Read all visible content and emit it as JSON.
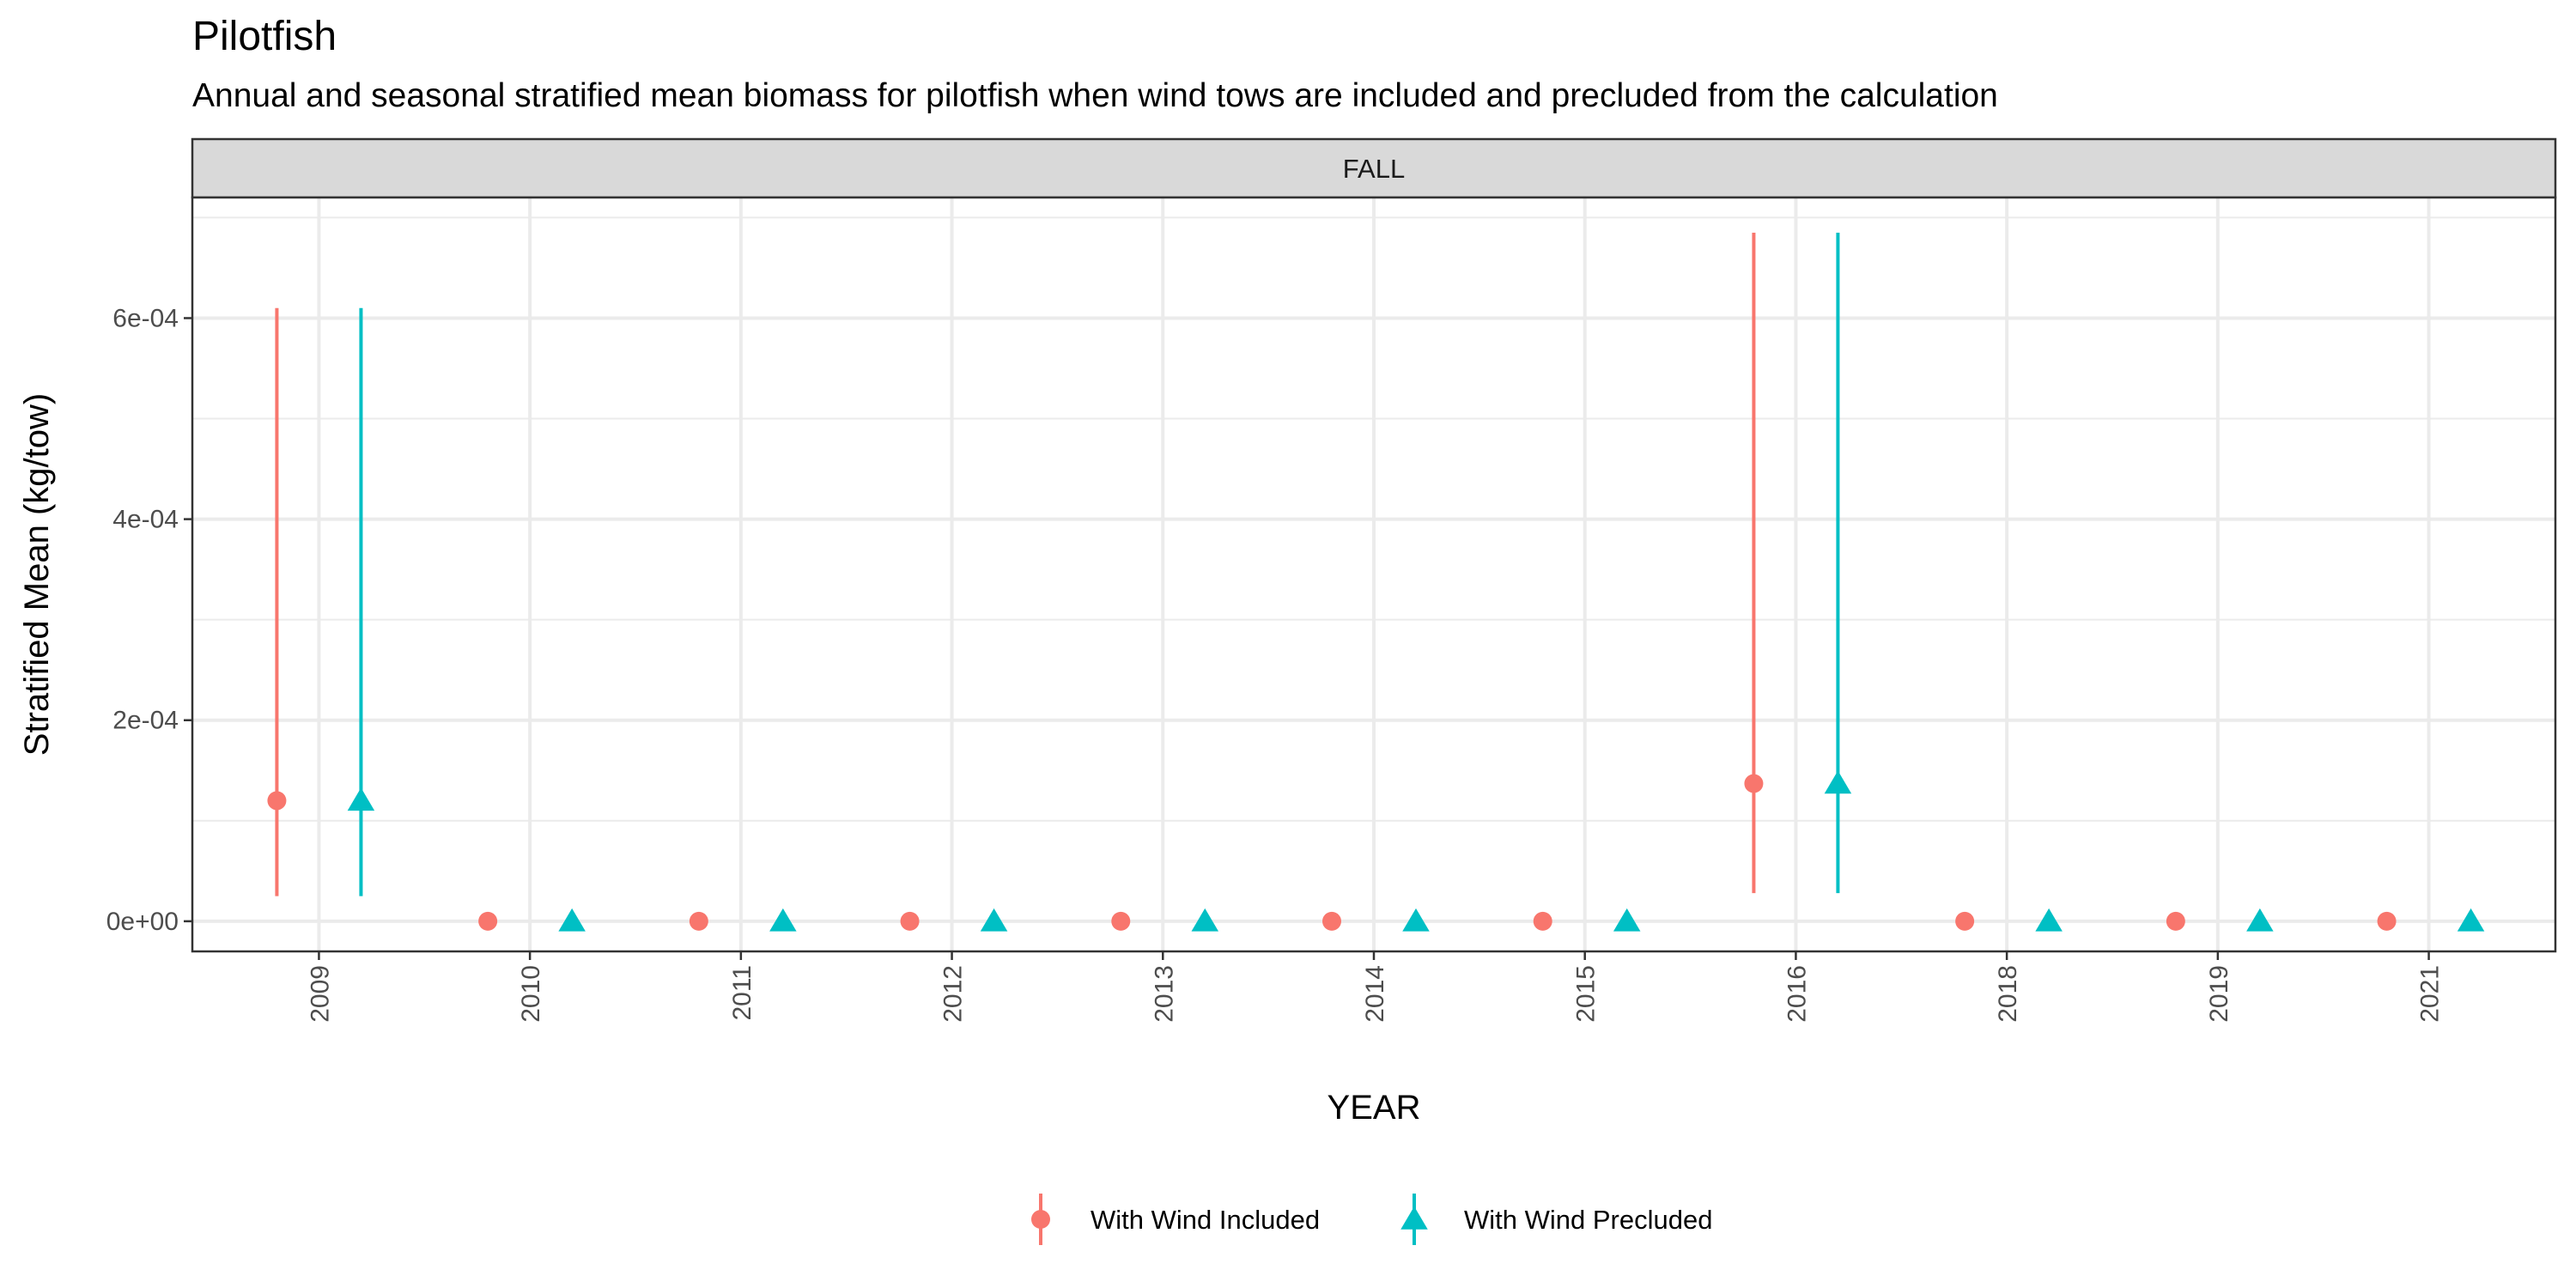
{
  "title": "Pilotfish",
  "subtitle": "Annual and seasonal stratified mean biomass for pilotfish when wind tows are included and precluded from the calculation",
  "chart_data": {
    "type": "scatter",
    "facet": "FALL",
    "xlabel": "YEAR",
    "ylabel": "Stratified Mean (kg/tow)",
    "categories": [
      "2009",
      "2010",
      "2011",
      "2012",
      "2013",
      "2014",
      "2015",
      "2016",
      "2018",
      "2019",
      "2021"
    ],
    "ylim": [
      -3e-05,
      0.00072
    ],
    "y_ticks": [
      0,
      0.0002,
      0.0004,
      0.0006
    ],
    "y_tick_labels": [
      "0e+00",
      "2e-04",
      "4e-04",
      "6e-04"
    ],
    "grid": true,
    "legend_position": "bottom",
    "series": [
      {
        "name": "With Wind Included",
        "marker": "circle",
        "color": "#F8766D",
        "values": [
          0.00012,
          0,
          0,
          0,
          0,
          0,
          0,
          0.000137,
          0,
          0,
          0
        ],
        "lower": [
          2.5e-05,
          null,
          null,
          null,
          null,
          null,
          null,
          2.8e-05,
          null,
          null,
          null
        ],
        "upper": [
          0.00061,
          null,
          null,
          null,
          null,
          null,
          null,
          0.000685,
          null,
          null,
          null
        ]
      },
      {
        "name": "With Wind Precluded",
        "marker": "triangle",
        "color": "#00BFC4",
        "values": [
          0.00012,
          0,
          0,
          0,
          0,
          0,
          0,
          0.000137,
          0,
          0,
          0
        ],
        "lower": [
          2.5e-05,
          null,
          null,
          null,
          null,
          null,
          null,
          2.8e-05,
          null,
          null,
          null
        ],
        "upper": [
          0.00061,
          null,
          null,
          null,
          null,
          null,
          null,
          0.000685,
          null,
          null,
          null
        ]
      }
    ]
  }
}
